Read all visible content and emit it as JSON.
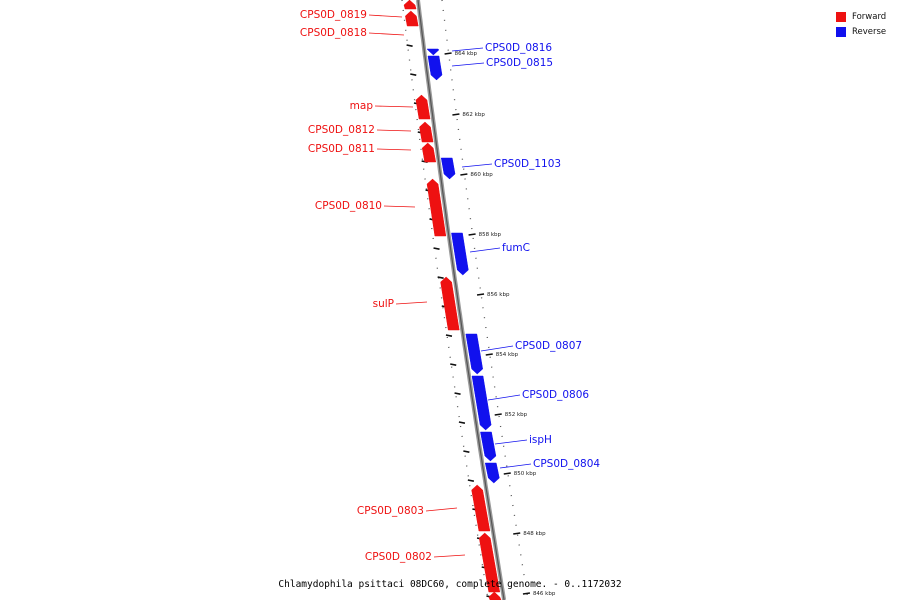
{
  "caption": "Chlamydophila psittaci 08DC60, complete genome. - 0..1172032",
  "colors": {
    "forward": "#ee1111",
    "reverse": "#1111ee"
  },
  "legend": {
    "forward_label": "Forward",
    "reverse_label": "Reverse"
  },
  "kbp_ticks": [
    "864 kbp",
    "862 kbp",
    "860 kbp",
    "858 kbp",
    "856 kbp",
    "854 kbp",
    "852 kbp",
    "850 kbp",
    "848 kbp",
    "846 kbp"
  ],
  "forward_genes": [
    {
      "name": "CPS0D_0819",
      "labeled": true
    },
    {
      "name": "CPS0D_0818",
      "labeled": true
    },
    {
      "name": "map",
      "labeled": true
    },
    {
      "name": "CPS0D_0812",
      "labeled": true
    },
    {
      "name": "CPS0D_0811",
      "labeled": true
    },
    {
      "name": "CPS0D_0810",
      "labeled": true
    },
    {
      "name": "sulP",
      "labeled": true
    },
    {
      "name": "CPS0D_0803",
      "labeled": true
    },
    {
      "name": "CPS0D_0802",
      "labeled": true
    },
    {
      "name": "",
      "labeled": false
    }
  ],
  "reverse_genes": [
    {
      "name": "CPS0D_0816",
      "labeled": true
    },
    {
      "name": "CPS0D_0815",
      "labeled": true
    },
    {
      "name": "CPS0D_1103",
      "labeled": true
    },
    {
      "name": "fumC",
      "labeled": true
    },
    {
      "name": "CPS0D_0807",
      "labeled": true
    },
    {
      "name": "CPS0D_0806",
      "labeled": true
    },
    {
      "name": "ispH",
      "labeled": true
    },
    {
      "name": "CPS0D_0804",
      "labeled": true
    }
  ]
}
